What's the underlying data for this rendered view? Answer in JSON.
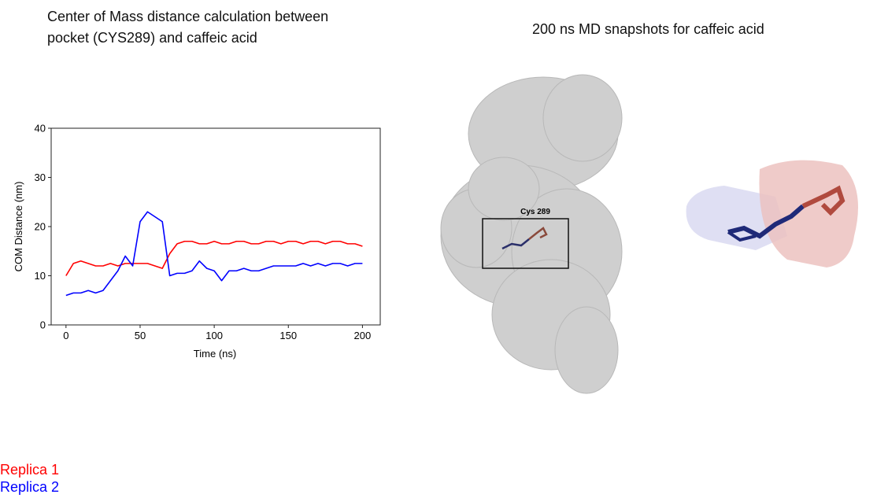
{
  "chart_data": {
    "type": "line",
    "title": "Center of Mass distance calculation between pocket (CYS289) and caffeic acid",
    "x_label": "Time (ns)",
    "y_label": "COM Distance (nm)",
    "x": [
      0,
      5,
      10,
      15,
      20,
      25,
      30,
      35,
      40,
      45,
      50,
      55,
      60,
      65,
      70,
      75,
      80,
      85,
      90,
      95,
      100,
      105,
      110,
      115,
      120,
      125,
      130,
      135,
      140,
      145,
      150,
      155,
      160,
      165,
      170,
      175,
      180,
      185,
      190,
      195,
      200
    ],
    "series": [
      {
        "name": "Replica 1",
        "color": "#ff0000",
        "values": [
          10,
          12.5,
          13,
          12.5,
          12,
          12,
          12.5,
          12,
          12.5,
          12.5,
          12.5,
          12.5,
          12,
          11.5,
          14.5,
          16.5,
          17,
          17,
          16.5,
          16.5,
          17,
          16.5,
          16.5,
          17,
          17,
          16.5,
          16.5,
          17,
          17,
          16.5,
          17,
          17,
          16.5,
          17,
          17,
          16.5,
          17,
          17,
          16.5,
          16.5,
          16
        ]
      },
      {
        "name": "Replica 2",
        "color": "#0000ff",
        "values": [
          6,
          6.5,
          6.5,
          7,
          6.5,
          7,
          9,
          11,
          14,
          12,
          21,
          23,
          22,
          21,
          10,
          10.5,
          10.5,
          11,
          13,
          11.5,
          11,
          9,
          11,
          11,
          11.5,
          11,
          11,
          11.5,
          12,
          12,
          12,
          12,
          12.5,
          12,
          12.5,
          12,
          12.5,
          12.5,
          12,
          12.5,
          12.5
        ]
      }
    ],
    "xlim": [
      -10,
      212
    ],
    "ylim": [
      0,
      40
    ],
    "xticks": [
      0,
      50,
      100,
      150,
      200
    ],
    "yticks": [
      0,
      10,
      20,
      30,
      40
    ],
    "annotations": [
      "200 ns MD snapshots for caffeic acid",
      "Cys 289"
    ]
  }
}
